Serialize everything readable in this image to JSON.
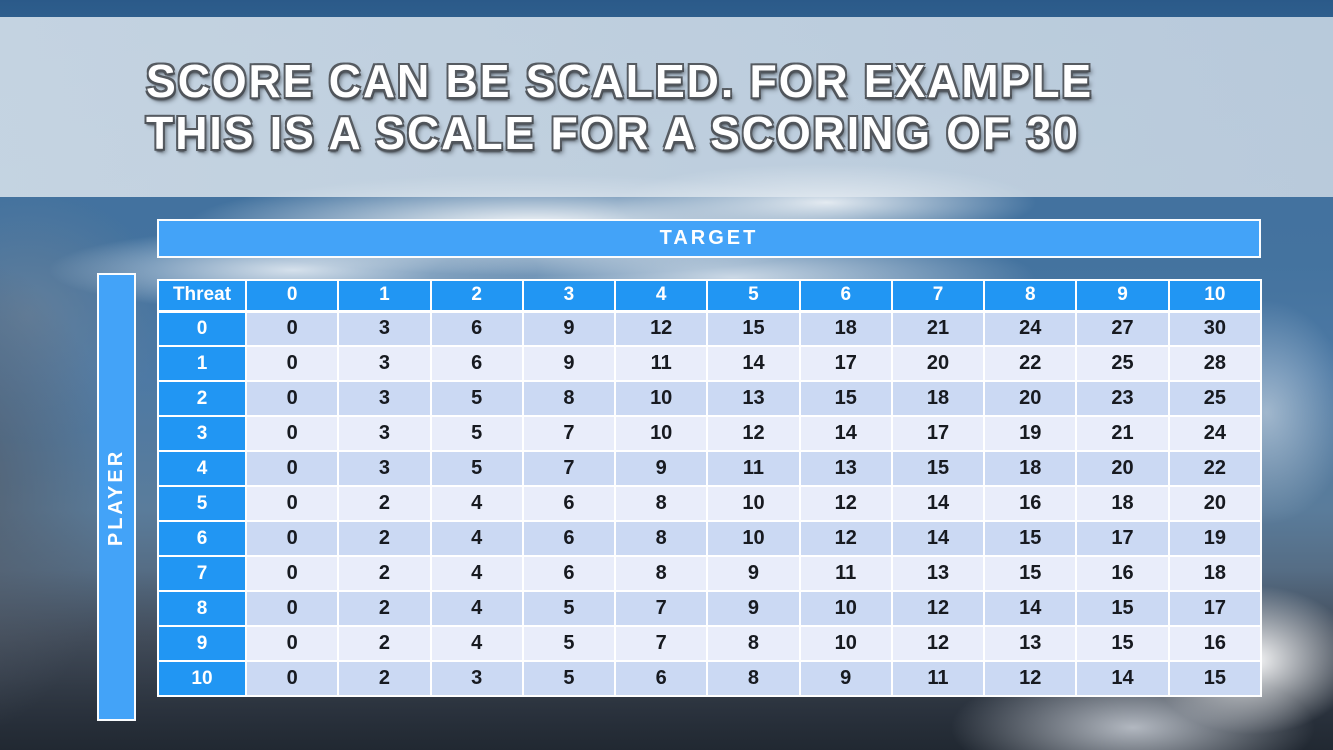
{
  "slide": {
    "title_line1": "SCORE CAN BE SCALED. FOR EXAMPLE",
    "title_line2": "THIS IS A SCALE FOR A SCORING OF 30"
  },
  "table": {
    "target_label": "TARGET",
    "player_label": "PLAYER",
    "corner_label": "Threat",
    "column_headers": [
      "0",
      "1",
      "2",
      "3",
      "4",
      "5",
      "6",
      "7",
      "8",
      "9",
      "10"
    ],
    "row_headers": [
      "0",
      "1",
      "2",
      "3",
      "4",
      "5",
      "6",
      "7",
      "8",
      "9",
      "10"
    ],
    "rows": [
      [
        0,
        3,
        6,
        9,
        12,
        15,
        18,
        21,
        24,
        27,
        30
      ],
      [
        0,
        3,
        6,
        9,
        11,
        14,
        17,
        20,
        22,
        25,
        28
      ],
      [
        0,
        3,
        5,
        8,
        10,
        13,
        15,
        18,
        20,
        23,
        25
      ],
      [
        0,
        3,
        5,
        7,
        10,
        12,
        14,
        17,
        19,
        21,
        24
      ],
      [
        0,
        3,
        5,
        7,
        9,
        11,
        13,
        15,
        18,
        20,
        22
      ],
      [
        0,
        2,
        4,
        6,
        8,
        10,
        12,
        14,
        16,
        18,
        20
      ],
      [
        0,
        2,
        4,
        6,
        8,
        10,
        12,
        14,
        15,
        17,
        19
      ],
      [
        0,
        2,
        4,
        6,
        8,
        9,
        11,
        13,
        15,
        16,
        18
      ],
      [
        0,
        2,
        4,
        5,
        7,
        9,
        10,
        12,
        14,
        15,
        17
      ],
      [
        0,
        2,
        4,
        5,
        7,
        8,
        10,
        12,
        13,
        15,
        16
      ],
      [
        0,
        2,
        3,
        5,
        6,
        8,
        9,
        11,
        12,
        14,
        15
      ]
    ]
  },
  "colors": {
    "header_blue": "#2196f3",
    "bar_blue": "#43a3f8",
    "row_even": "#cbd9f3",
    "row_odd": "#e9edfa",
    "body_text": "#171a20",
    "title_text": "#ffffff",
    "title_band": "#ccd6e0"
  }
}
